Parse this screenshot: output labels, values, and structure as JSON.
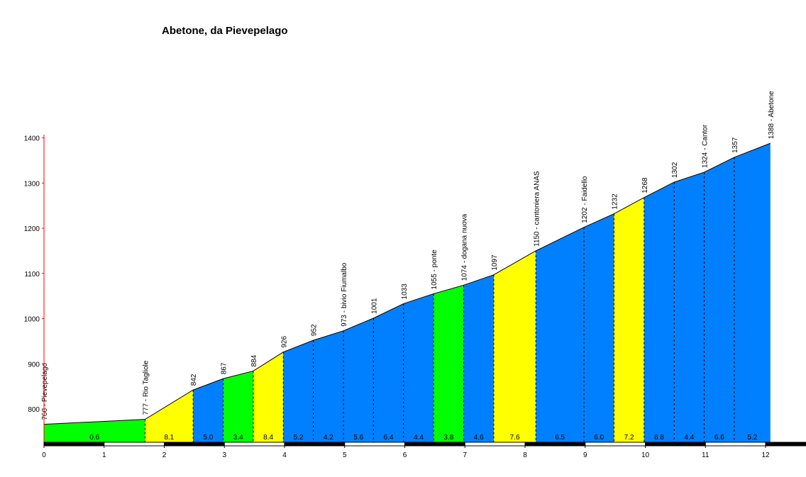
{
  "chart_data": {
    "type": "area",
    "title": "Abetone, da Pievepelago",
    "xlabel": "",
    "ylabel": "",
    "xlim": [
      0,
      12.7
    ],
    "ylim": [
      720,
      1400
    ],
    "x_ticks": [
      0,
      1,
      2,
      3,
      4,
      5,
      6,
      7,
      8,
      9,
      10,
      11,
      12
    ],
    "y_ticks": [
      800,
      900,
      1000,
      1100,
      1200,
      1300,
      1400
    ],
    "grid": false,
    "legend": "none",
    "points": [
      {
        "x": 0.0,
        "y": 766,
        "label": "766 - Pievepelago"
      },
      {
        "x": 1.68,
        "y": 777,
        "label": "777 - Rio Tagliole"
      },
      {
        "x": 2.48,
        "y": 842,
        "label": "842"
      },
      {
        "x": 2.98,
        "y": 867,
        "label": "867"
      },
      {
        "x": 3.48,
        "y": 884,
        "label": "884"
      },
      {
        "x": 3.98,
        "y": 926,
        "label": "926"
      },
      {
        "x": 4.48,
        "y": 952,
        "label": "952"
      },
      {
        "x": 4.98,
        "y": 973,
        "label": "973 - bivio Fiumalbo"
      },
      {
        "x": 5.48,
        "y": 1001,
        "label": "1001"
      },
      {
        "x": 5.98,
        "y": 1033,
        "label": "1033"
      },
      {
        "x": 6.48,
        "y": 1055,
        "label": "1055 - ponte"
      },
      {
        "x": 6.98,
        "y": 1074,
        "label": "1074 - dogana nuova"
      },
      {
        "x": 7.48,
        "y": 1097,
        "label": "1097"
      },
      {
        "x": 8.18,
        "y": 1150,
        "label": "1150 - cantoniera ANAS"
      },
      {
        "x": 8.98,
        "y": 1202,
        "label": "1202 - Faidello"
      },
      {
        "x": 9.48,
        "y": 1232,
        "label": "1232"
      },
      {
        "x": 9.98,
        "y": 1268,
        "label": "1268"
      },
      {
        "x": 10.48,
        "y": 1302,
        "label": "1302"
      },
      {
        "x": 10.98,
        "y": 1324,
        "label": "1324 - Cantor"
      },
      {
        "x": 11.48,
        "y": 1357,
        "label": "1357"
      },
      {
        "x": 12.08,
        "y": 1388,
        "label": "1388 - Abetone"
      }
    ],
    "segments": [
      {
        "gradient": "0.6",
        "color": "#00ff00"
      },
      {
        "gradient": "8.1",
        "color": "#ffff00"
      },
      {
        "gradient": "5.0",
        "color": "#0080ff"
      },
      {
        "gradient": "3.4",
        "color": "#00ff00"
      },
      {
        "gradient": "8.4",
        "color": "#ffff00"
      },
      {
        "gradient": "5.2",
        "color": "#0080ff"
      },
      {
        "gradient": "4.2",
        "color": "#0080ff"
      },
      {
        "gradient": "5.6",
        "color": "#0080ff"
      },
      {
        "gradient": "6.4",
        "color": "#0080ff"
      },
      {
        "gradient": "4.4",
        "color": "#0080ff"
      },
      {
        "gradient": "3.8",
        "color": "#00ff00"
      },
      {
        "gradient": "4.6",
        "color": "#0080ff"
      },
      {
        "gradient": "7.6",
        "color": "#ffff00"
      },
      {
        "gradient": "6.5",
        "color": "#0080ff"
      },
      {
        "gradient": "6.0",
        "color": "#0080ff"
      },
      {
        "gradient": "7.2",
        "color": "#ffff00"
      },
      {
        "gradient": "6.8",
        "color": "#0080ff"
      },
      {
        "gradient": "4.4",
        "color": "#0080ff"
      },
      {
        "gradient": "6.6",
        "color": "#0080ff"
      },
      {
        "gradient": "5.2",
        "color": "#0080ff"
      }
    ]
  }
}
